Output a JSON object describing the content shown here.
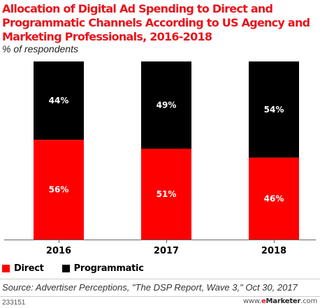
{
  "header": {
    "title": "Allocation of Digital Ad Spending to Direct and Programmatic Channels According to US Agency and Marketing Professionals, 2016-2018",
    "subtitle": "% of respondents"
  },
  "chart_data": {
    "type": "bar",
    "stacked": true,
    "categories": [
      "2016",
      "2017",
      "2018"
    ],
    "series": [
      {
        "name": "Direct",
        "values": [
          56,
          51,
          46
        ],
        "color": "#ff0000"
      },
      {
        "name": "Programmatic",
        "values": [
          44,
          49,
          54
        ],
        "color": "#000000"
      }
    ],
    "value_suffix": "%",
    "ylim": [
      0,
      100
    ],
    "grid": false,
    "legend_position": "bottom-left"
  },
  "legend": {
    "items": [
      {
        "label": "Direct",
        "color": "#ff0000"
      },
      {
        "label": "Programmatic",
        "color": "#000000"
      }
    ]
  },
  "footer": {
    "source": "Source: Advertiser Perceptions, \"The DSP Report, Wave 3,\" Oct 30, 2017",
    "chart_id": "233151",
    "brand_prefix": "www.",
    "brand_e": "e",
    "brand_name": "Marketer",
    "brand_suffix": ".com"
  }
}
